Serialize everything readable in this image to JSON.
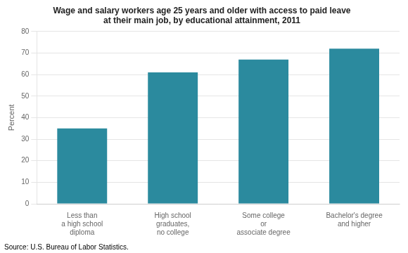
{
  "chart_data": {
    "type": "bar",
    "title": "Wage and salary workers age 25 years and older with access to paid leave\nat their main job, by educational attainment, 2011",
    "categories": [
      "Less than\na high school\ndiploma",
      "High school\ngraduates,\nno college",
      "Some college\nor\nassociate degree",
      "Bachelor's degree\nand higher"
    ],
    "values": [
      35,
      61,
      67,
      72
    ],
    "color": "#2b8a9e",
    "ylabel": "Percent",
    "ylim": [
      0,
      80
    ],
    "yticks": [
      0,
      10,
      20,
      30,
      40,
      50,
      60,
      70,
      80
    ],
    "grid": true,
    "annotation": "Source: U.S. Bureau of Labor Statistics."
  }
}
